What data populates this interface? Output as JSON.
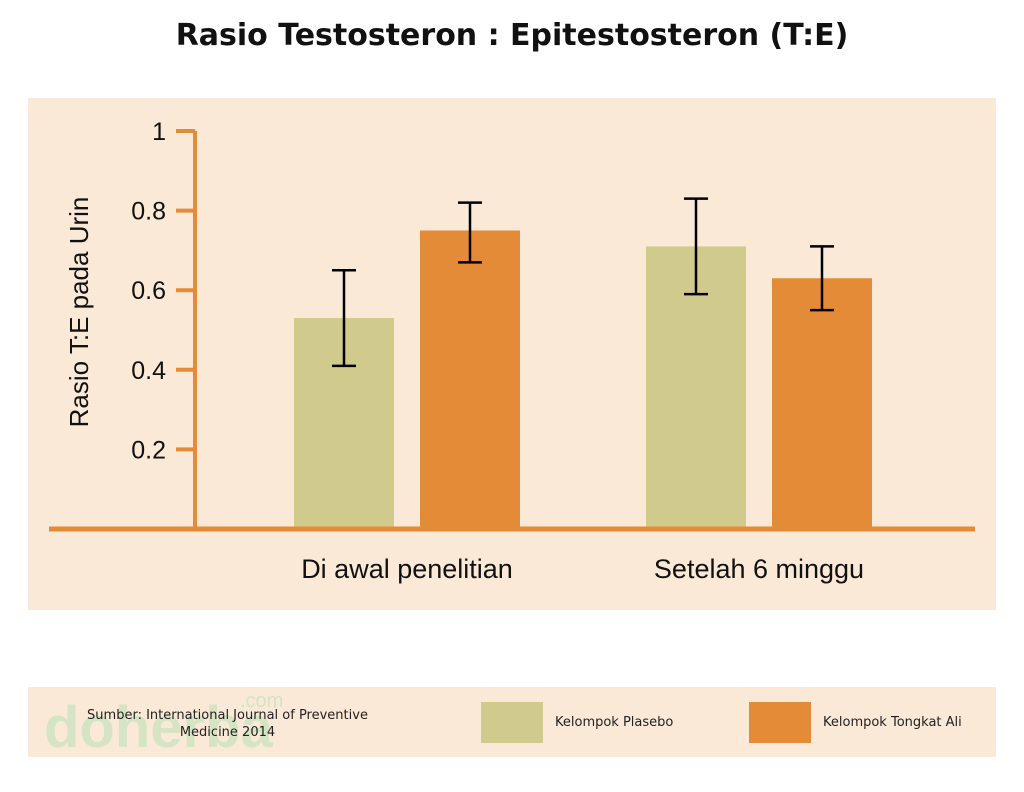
{
  "chart_data": {
    "type": "bar",
    "title": "Rasio Testosteron : Epitestosteron (T:E)",
    "ylabel": "Rasio T:E pada Urin",
    "xlabel": "",
    "ylim": [
      0,
      1
    ],
    "yticks": [
      {
        "value": 1,
        "label": "1"
      },
      {
        "value": 0.8,
        "label": "0.8"
      },
      {
        "value": 0.6,
        "label": "0.6"
      },
      {
        "value": 0.4,
        "label": "0.4"
      },
      {
        "value": 0.2,
        "label": "0.2"
      }
    ],
    "grid": false,
    "categories": [
      "Di awal penelitian",
      "Setelah 6 minggu"
    ],
    "series": [
      {
        "name": "Kelompok Plasebo",
        "color": "#d0ca8c",
        "values": [
          0.53,
          0.71
        ],
        "error_low": [
          0.41,
          0.59
        ],
        "error_high": [
          0.65,
          0.83
        ]
      },
      {
        "name": "Kelompok Tongkat Ali",
        "color": "#e48b37",
        "values": [
          0.75,
          0.63
        ],
        "error_low": [
          0.67,
          0.55
        ],
        "error_high": [
          0.82,
          0.71
        ]
      }
    ],
    "legend_position": "bottom"
  },
  "footer": {
    "source": "Sumber: International Journal of Preventive Medicine 2014",
    "watermark": "doherba",
    "watermark_suffix": ".com"
  },
  "colors": {
    "panel_bg": "#fbe9d7",
    "axis": "#e48b37",
    "error_bar": "#000000"
  }
}
